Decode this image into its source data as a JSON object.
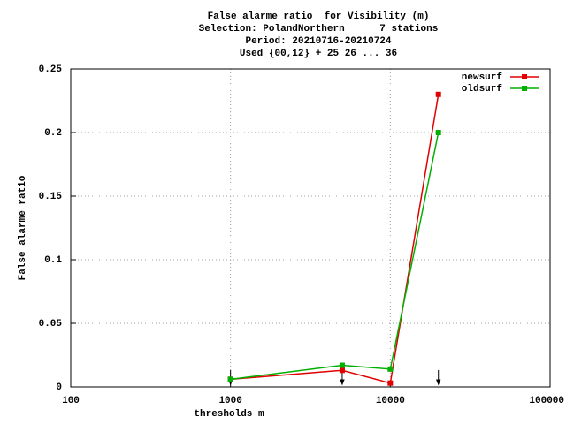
{
  "chart_data": {
    "type": "line",
    "title": [
      "False alarme ratio  for Visibility (m)",
      "Selection: PolandNorthern      7 stations",
      "Period: 20210716-20210724",
      "Used {00,12} + 25 26 ... 36"
    ],
    "x_label": "thresholds m",
    "y_label": "False alarme ratio",
    "x": [
      1000,
      5000,
      10000,
      20000
    ],
    "series": [
      {
        "name": "newsurf",
        "color": "#e00000",
        "values": [
          0.006,
          0.013,
          0.003,
          0.23
        ]
      },
      {
        "name": "oldsurf",
        "color": "#00b000",
        "values": [
          0.006,
          0.017,
          0.014,
          0.2
        ]
      }
    ],
    "arrows_x": [
      1000,
      5000,
      20000
    ],
    "xscale": "log",
    "xlim": [
      100,
      100000
    ],
    "xticks": [
      100,
      1000,
      10000,
      100000
    ],
    "ylim": [
      0,
      0.25
    ],
    "yticks": [
      0,
      0.05,
      0.1,
      0.15,
      0.2,
      0.25
    ],
    "grid": true,
    "legend": "top-right"
  }
}
